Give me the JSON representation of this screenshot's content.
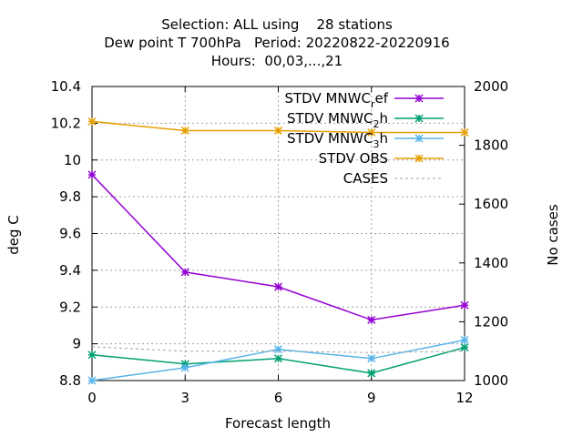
{
  "chart_data": {
    "type": "line",
    "title_lines": [
      "Selection: ALL using    28 stations",
      "Dew point T 700hPa   Period: 20220822-20220916",
      "Hours:  00,03,...,21"
    ],
    "xlabel": "Forecast length",
    "ylabel": "deg C",
    "y2label": "No cases",
    "x": [
      0,
      3,
      6,
      9,
      12
    ],
    "xlim": [
      0,
      12
    ],
    "ylim": [
      8.8,
      10.4
    ],
    "y2lim": [
      1000,
      2000
    ],
    "xticks": [
      "0",
      "3",
      "6",
      "9",
      "12"
    ],
    "yticks": [
      "8.8",
      "9",
      "9.2",
      "9.4",
      "9.6",
      "9.8",
      "10",
      "10.2",
      "10.4"
    ],
    "y2ticks": [
      "1000",
      "1200",
      "1400",
      "1600",
      "1800",
      "2000"
    ],
    "grid": true,
    "legend_position": "top-right",
    "series": [
      {
        "name": "STDV MNWC",
        "subscript": "r",
        "suffix": "ef",
        "axis": "y1",
        "color": "#9400d3",
        "marker": "x-star",
        "dash": "",
        "values": [
          9.92,
          9.39,
          9.31,
          9.13,
          9.21
        ]
      },
      {
        "name": "STDV MNWC",
        "subscript": "2",
        "suffix": "h",
        "axis": "y1",
        "color": "#009e73",
        "marker": "x-star",
        "dash": "",
        "values": [
          8.94,
          8.89,
          8.92,
          8.84,
          8.98
        ]
      },
      {
        "name": "STDV MNWC",
        "subscript": "3",
        "suffix": "h",
        "axis": "y1",
        "color": "#56b4e9",
        "marker": "x-star",
        "dash": "",
        "values": [
          8.8,
          8.87,
          8.97,
          8.92,
          9.02
        ]
      },
      {
        "name": "STDV OBS",
        "subscript": "",
        "suffix": "",
        "axis": "y1",
        "color": "#e69f00",
        "marker": "x-star",
        "dash": "",
        "values": [
          10.21,
          10.16,
          10.16,
          10.15,
          10.15
        ]
      },
      {
        "name": "CASES",
        "subscript": "",
        "suffix": "",
        "axis": "y2",
        "color": "#a0a0a0",
        "marker": "",
        "dash": "3,3",
        "values": [
          1115,
          1100,
          1100,
          1095,
          1100
        ]
      }
    ]
  }
}
